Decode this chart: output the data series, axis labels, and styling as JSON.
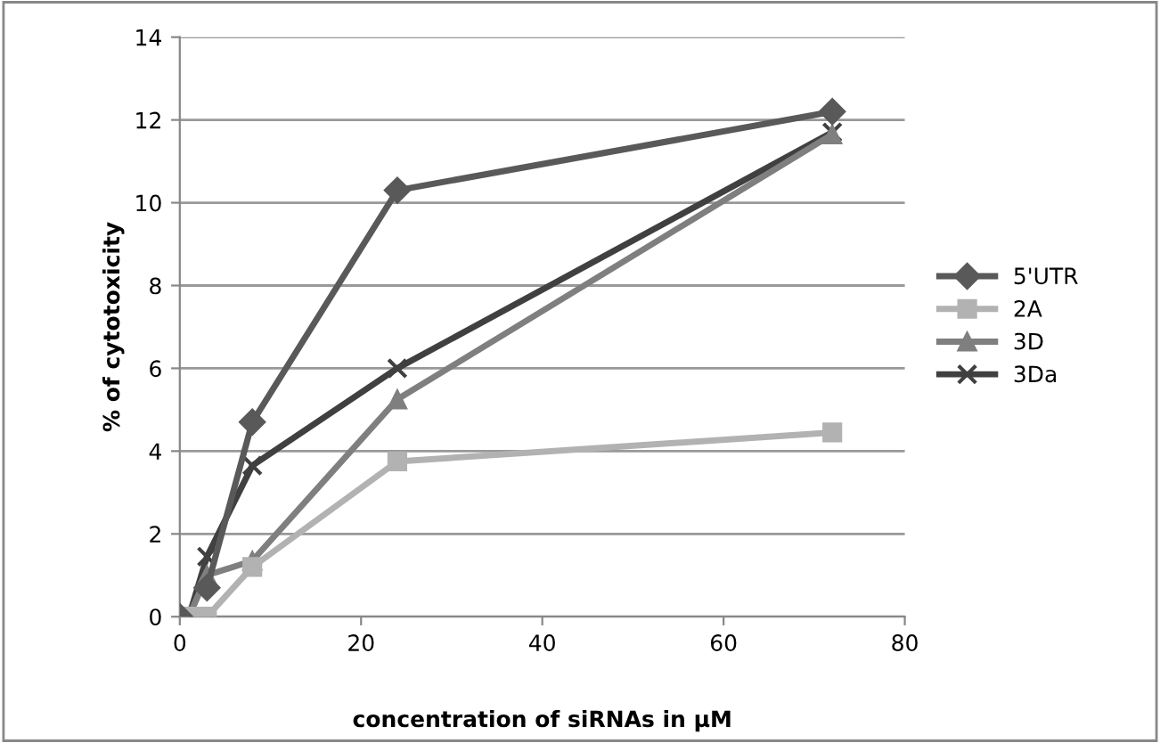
{
  "chart_data": {
    "type": "line",
    "xlabel": "concentration of siRNAs in µM",
    "ylabel": "% of cytotoxicity",
    "xlim": [
      0,
      80
    ],
    "xticks": [
      0,
      20,
      40,
      60,
      80
    ],
    "ylim": [
      0,
      14
    ],
    "yticks": [
      0,
      2,
      4,
      6,
      8,
      10,
      12,
      14
    ],
    "grid": "y",
    "legend": "right",
    "line_style": "solid",
    "x": [
      0,
      1,
      3,
      8,
      24,
      72
    ],
    "series": [
      {
        "name": "5'UTR",
        "color": "#595959",
        "marker": "diamond",
        "values": [
          0,
          null,
          0.7,
          4.7,
          10.3,
          12.2
        ]
      },
      {
        "name": "2A",
        "color": "#b2b2b2",
        "marker": "square",
        "values": [
          0,
          0,
          0,
          1.2,
          3.75,
          4.45
        ]
      },
      {
        "name": "3D",
        "color": "#7f7f7f",
        "marker": "triangle",
        "values": [
          0,
          0,
          1.0,
          1.35,
          5.25,
          11.65
        ]
      },
      {
        "name": "3Da",
        "color": "#404040",
        "marker": "cross",
        "values": [
          0,
          0,
          1.45,
          3.65,
          6.0,
          11.7
        ]
      }
    ]
  }
}
